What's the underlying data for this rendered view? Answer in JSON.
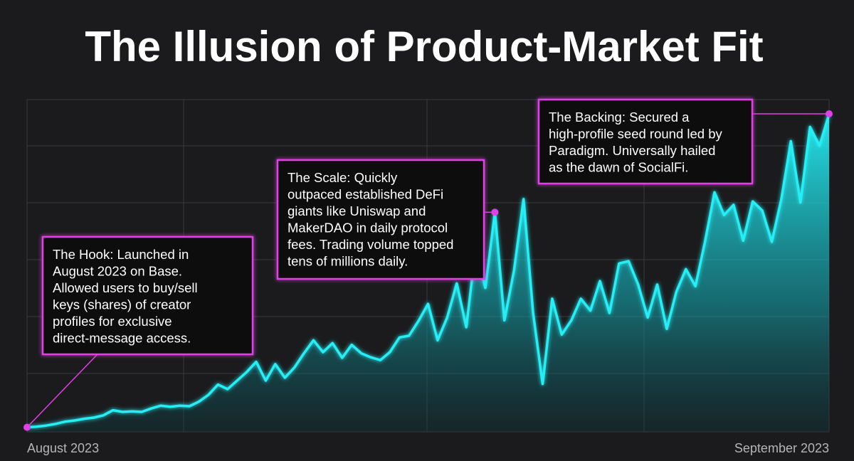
{
  "chart_data": {
    "type": "area",
    "title": "The Illusion of Product-Market Fit",
    "categories": [
      "August 2023",
      null,
      null,
      null,
      null,
      null,
      null,
      null,
      null,
      null,
      null,
      null,
      null,
      null,
      null,
      null,
      null,
      null,
      null,
      null,
      null,
      null,
      null,
      null,
      null,
      null,
      null,
      null,
      null,
      null,
      null,
      null,
      null,
      null,
      null,
      null,
      null,
      null,
      null,
      null,
      null,
      null,
      null,
      null,
      null,
      null,
      null,
      null,
      null,
      null,
      null,
      null,
      null,
      null,
      null,
      null,
      null,
      null,
      null,
      null,
      null,
      null,
      null,
      null,
      null,
      null,
      null,
      null,
      null,
      null,
      null,
      null,
      null,
      null,
      null,
      null,
      null,
      null,
      null,
      null,
      null,
      null,
      null,
      null,
      "September 2023"
    ],
    "values": [
      0.08,
      0.09,
      0.11,
      0.14,
      0.18,
      0.2,
      0.23,
      0.25,
      0.29,
      0.38,
      0.35,
      0.36,
      0.35,
      0.41,
      0.46,
      0.44,
      0.46,
      0.45,
      0.53,
      0.65,
      0.83,
      0.75,
      0.9,
      1.05,
      1.23,
      0.9,
      1.19,
      0.95,
      1.13,
      1.38,
      1.61,
      1.4,
      1.56,
      1.3,
      1.53,
      1.38,
      1.31,
      1.26,
      1.4,
      1.66,
      1.69,
      1.95,
      2.25,
      1.61,
      2.01,
      2.61,
      1.84,
      3.25,
      2.53,
      3.86,
      1.96,
      2.84,
      4.09,
      2.09,
      0.84,
      2.34,
      1.71,
      1.96,
      2.34,
      2.13,
      2.65,
      2.09,
      2.96,
      3.0,
      2.59,
      2.01,
      2.59,
      1.81,
      2.46,
      2.86,
      2.56,
      3.34,
      4.21,
      3.81,
      3.99,
      3.36,
      4.05,
      3.89,
      3.34,
      4.09,
      5.11,
      4.03,
      5.36,
      5.03,
      5.59
    ],
    "color": "#27eef5",
    "ylim": [
      0,
      5.84
    ],
    "grid": true,
    "annotations": [
      {
        "lines": [
          "The Hook: Launched in",
          "August 2023 on Base.",
          "Allowed users to buy/sell",
          "keys (shares) of creator",
          "profiles for exclusive",
          "direct-message access."
        ]
      },
      {
        "lines": [
          "The Scale: Quickly",
          "outpaced established DeFi",
          "giants like Uniswap and",
          "MakerDAO in daily protocol",
          "fees. Trading volume topped",
          "tens of millions daily."
        ]
      },
      {
        "lines": [
          "The Backing: Secured a",
          "high-profile seed round led by",
          "Paradigm. Universally hailed",
          "as the dawn of SocialFi."
        ]
      }
    ]
  }
}
